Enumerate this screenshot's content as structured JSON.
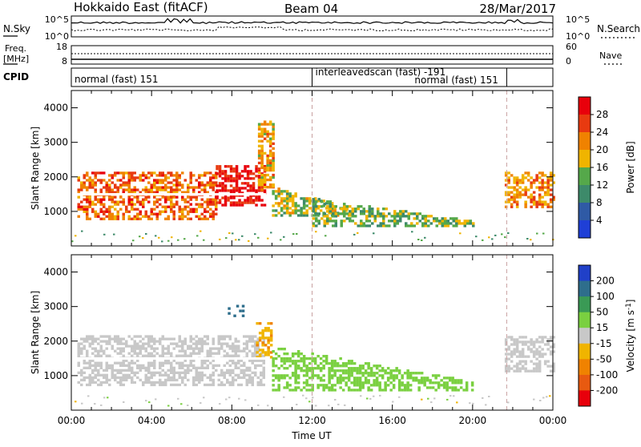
{
  "header": {
    "station": "Hokkaido East (fitACF)",
    "beam": "Beam 04",
    "date": "28/Mar/2017"
  },
  "top_panels": {
    "nsky_label": "N.Sky",
    "nsky_ticks": [
      "10^5",
      "10^0"
    ],
    "nsearch_label": "N.Search",
    "freq_label_line1": "Freq.",
    "freq_label_line2": "[MHz]",
    "freq_ticks": [
      "18",
      "8"
    ],
    "nave_label": "Nave",
    "nave_ticks": [
      "60",
      "0"
    ],
    "cpid_label": "CPID",
    "cpid_segments": [
      {
        "label": "normal (fast) 151",
        "start_hour": 0.0
      },
      {
        "label": "interleavedscan (fast) -191",
        "start_hour": 12.0
      },
      {
        "label": "normal (fast) 151",
        "start_hour": 21.7
      }
    ]
  },
  "chart_data": [
    {
      "type": "heatmap",
      "panel": "power",
      "xlabel": "",
      "ylabel": "Slant Range [km]",
      "xlim": [
        0,
        24
      ],
      "ylim": [
        0,
        4500
      ],
      "yticks": [
        1000,
        2000,
        3000,
        4000
      ],
      "colorbar": {
        "label": "Power [dB]",
        "ticks": [
          4,
          8,
          12,
          16,
          20,
          24,
          28
        ],
        "colors": [
          "#1f3fd6",
          "#2f5aa5",
          "#3d8a6a",
          "#55a84a",
          "#f0b400",
          "#f08200",
          "#e83a10",
          "#e8000b"
        ],
        "min": 0,
        "max": 32
      },
      "features": [
        {
          "t0": 0.3,
          "t1": 7.2,
          "r0": 750,
          "r1": 2150,
          "level": 24
        },
        {
          "t0": 7.2,
          "t1": 9.6,
          "r0": 1150,
          "r1": 2300,
          "level": 30
        },
        {
          "t0": 9.3,
          "t1": 10.0,
          "r0": 1600,
          "r1": 3600,
          "level": 20
        },
        {
          "t0": 10.0,
          "t1": 14.0,
          "r0": 850,
          "r1": 1700,
          "level": 16
        },
        {
          "t0": 12.0,
          "t1": 20.0,
          "r0": 550,
          "r1": 1350,
          "level": 14
        },
        {
          "t0": 21.6,
          "t1": 24.0,
          "r0": 1100,
          "r1": 2100,
          "level": 22
        }
      ]
    },
    {
      "type": "heatmap",
      "panel": "velocity",
      "xlabel": "Time UT",
      "ylabel": "Slant Range [km]",
      "xlim": [
        0,
        24
      ],
      "ylim": [
        0,
        4500
      ],
      "yticks": [
        1000,
        2000,
        3000,
        4000
      ],
      "xticks": [
        "00:00",
        "04:00",
        "08:00",
        "12:00",
        "16:00",
        "20:00",
        "00:00"
      ],
      "colorbar": {
        "label": "Velocity [m s^-1]",
        "ticks": [
          200,
          100,
          50,
          15,
          -15,
          -50,
          -100,
          -200
        ],
        "colors": [
          "#2040c8",
          "#2e6e8c",
          "#3a9a55",
          "#7ad040",
          "#c8c8c8",
          "#f0b400",
          "#f08200",
          "#e85a10",
          "#e8000b"
        ],
        "min": -250,
        "max": 250
      },
      "features": [
        {
          "t0": 0.3,
          "t1": 9.6,
          "r0": 700,
          "r1": 2150,
          "level": 0
        },
        {
          "t0": 7.8,
          "t1": 8.6,
          "r0": 2700,
          "r1": 3000,
          "level": 150
        },
        {
          "t0": 9.2,
          "t1": 10.0,
          "r0": 1500,
          "r1": 2500,
          "level": -40
        },
        {
          "t0": 10.0,
          "t1": 20.0,
          "r0": 550,
          "r1": 1800,
          "level": 30
        },
        {
          "t0": 21.6,
          "t1": 24.0,
          "r0": 1100,
          "r1": 2100,
          "level": 0
        }
      ]
    }
  ]
}
